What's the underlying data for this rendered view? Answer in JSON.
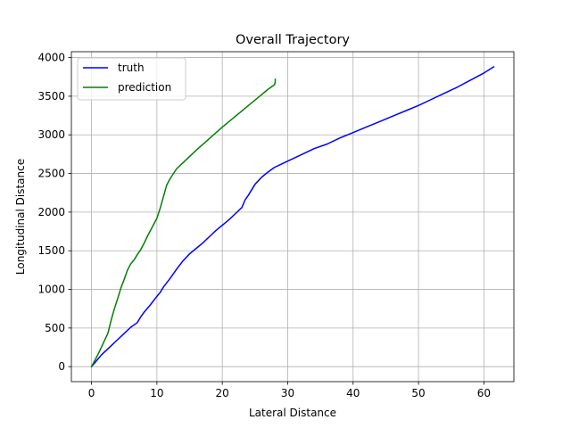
{
  "chart_data": {
    "type": "line",
    "title": "Overall Trajectory",
    "xlabel": "Lateral Distance",
    "ylabel": "Longitudinal Distance",
    "xlim": [
      -3.08,
      64.59
    ],
    "ylim": [
      -194,
      4076
    ],
    "xticks": [
      0,
      10,
      20,
      30,
      40,
      50,
      60
    ],
    "yticks": [
      0,
      500,
      1000,
      1500,
      2000,
      2500,
      3000,
      3500,
      4000
    ],
    "grid": true,
    "legend_position": "upper-left",
    "series": [
      {
        "name": "truth",
        "color": "#0000ff",
        "x": [
          0,
          0.5,
          1,
          1.5,
          2,
          3,
          4,
          5,
          6,
          7,
          7.5,
          8,
          9,
          10,
          10.5,
          11,
          12,
          13,
          14,
          15,
          16,
          17,
          18,
          19,
          20,
          21,
          22,
          23,
          23.5,
          24,
          25,
          26,
          27,
          28,
          29,
          30,
          32,
          34,
          36,
          38,
          40,
          42,
          44,
          46,
          48,
          50,
          52,
          54,
          56,
          58,
          60,
          61.5
        ],
        "y": [
          0,
          50,
          100,
          150,
          190,
          270,
          350,
          430,
          510,
          570,
          640,
          700,
          800,
          910,
          960,
          1030,
          1140,
          1260,
          1370,
          1460,
          1530,
          1600,
          1680,
          1760,
          1830,
          1900,
          1980,
          2060,
          2160,
          2220,
          2360,
          2450,
          2520,
          2580,
          2620,
          2660,
          2740,
          2820,
          2880,
          2960,
          3030,
          3100,
          3170,
          3240,
          3310,
          3380,
          3460,
          3540,
          3620,
          3710,
          3800,
          3880
        ]
      },
      {
        "name": "prediction",
        "color": "#008000",
        "x": [
          0,
          0.5,
          1,
          1.5,
          2,
          2.5,
          3,
          3.5,
          4,
          4.5,
          5,
          5.5,
          6,
          6.5,
          7,
          7.5,
          8,
          8.5,
          9,
          9.5,
          10,
          10.5,
          11,
          11.5,
          12,
          13,
          14,
          16,
          18,
          20,
          22,
          24,
          26,
          27,
          28,
          28.1,
          28.1
        ],
        "y": [
          0,
          80,
          160,
          250,
          340,
          430,
          600,
          750,
          880,
          1020,
          1130,
          1250,
          1330,
          1380,
          1450,
          1510,
          1590,
          1680,
          1760,
          1840,
          1920,
          2050,
          2200,
          2350,
          2430,
          2560,
          2640,
          2800,
          2950,
          3100,
          3240,
          3380,
          3520,
          3590,
          3650,
          3690,
          3720
        ]
      }
    ]
  }
}
